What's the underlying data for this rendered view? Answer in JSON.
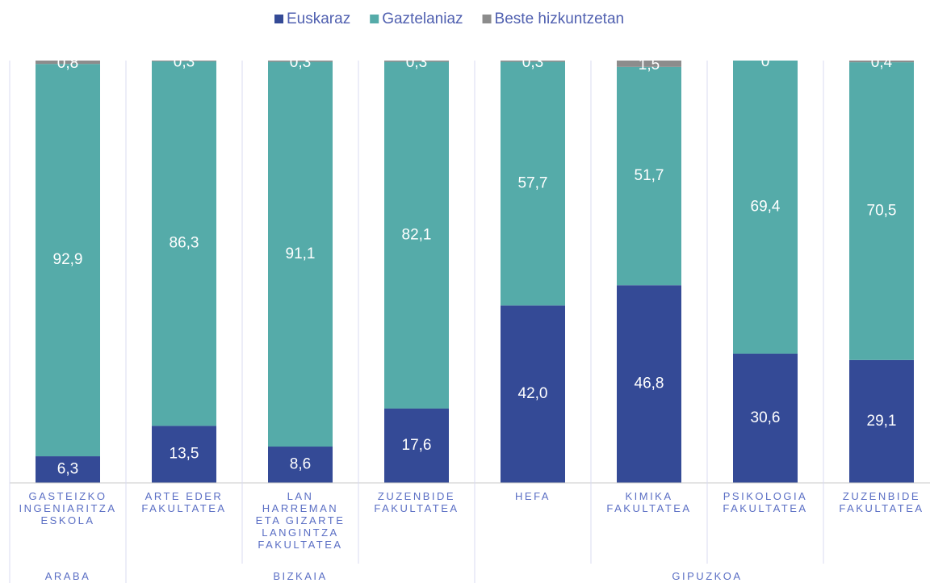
{
  "chart_data": {
    "type": "stacked-bar",
    "groups": [
      {
        "name": "ARABA",
        "categories": [
          "GASTEIZKO\nINGENIARITZA\nESKOLA"
        ]
      },
      {
        "name": "BIZKAIA",
        "categories": [
          "ARTE EDER\nFAKULTATEA",
          "LAN\nHARREMAN\nETA GIZARTE\nLANGINTZA\nFAKULTATEA",
          "ZUZENBIDE\nFAKULTATEA"
        ]
      },
      {
        "name": "GIPUZKOA",
        "categories": [
          "HEFA",
          "KIMIKA\nFAKULTATEA",
          "PSIKOLOGIA\nFAKULTATEA",
          "ZUZENBIDE\nFAKULTATEA"
        ]
      }
    ],
    "series": [
      {
        "name": "Euskaraz",
        "color": "#344a96",
        "values": [
          6.3,
          13.5,
          8.6,
          17.6,
          42.0,
          46.8,
          30.6,
          29.1
        ],
        "value_labels": [
          "6,3",
          "13,5",
          "8,6",
          "17,6",
          "42,0",
          "46,8",
          "30,6",
          "29,1"
        ]
      },
      {
        "name": "Gaztelaniaz",
        "color": "#55aba9",
        "values": [
          92.9,
          86.3,
          91.1,
          82.1,
          57.7,
          51.7,
          69.4,
          70.5
        ],
        "value_labels": [
          "92,9",
          "86,3",
          "91,1",
          "82,1",
          "57,7",
          "51,7",
          "69,4",
          "70,5"
        ]
      },
      {
        "name": "Beste hizkuntzetan",
        "color": "#8c8c8c",
        "values": [
          0.8,
          0.3,
          0.3,
          0.3,
          0.3,
          1.5,
          0,
          0.4
        ],
        "value_labels": [
          "0,8",
          "0,3",
          "0,3",
          "0,3",
          "0,3",
          "1,5",
          "0",
          "0,4"
        ]
      }
    ],
    "ylim": [
      0,
      100
    ],
    "legend": "top"
  }
}
